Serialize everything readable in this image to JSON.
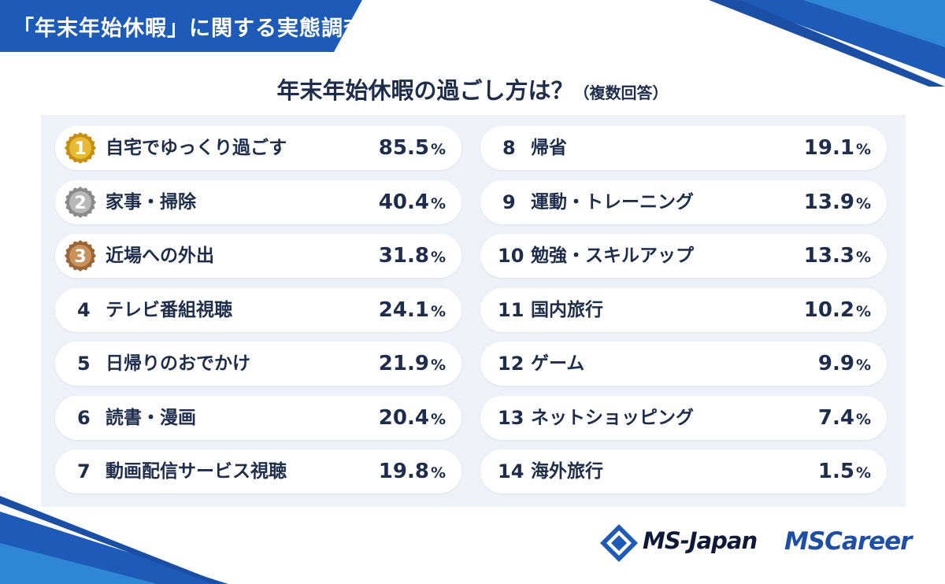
{
  "header": {
    "title": "「年末年始休暇」に関する実態調査"
  },
  "colors": {
    "accent": "#1e5bb8",
    "text": "#1f2d4d",
    "panel": "#eef2f8",
    "gold": "#d8a11f",
    "silver": "#9a9a9a",
    "bronze": "#b07a4a"
  },
  "chart_data": {
    "type": "table",
    "title": "年末年始休暇の過ごし方は？",
    "subtitle": "（複数回答）",
    "unit": "%",
    "rows": [
      {
        "rank": "1",
        "label": "自宅でゆっくり過ごす",
        "value": "85.5",
        "medal": "gold"
      },
      {
        "rank": "2",
        "label": "家事・掃除",
        "value": "40.4",
        "medal": "silver"
      },
      {
        "rank": "3",
        "label": "近場への外出",
        "value": "31.8",
        "medal": "bronze"
      },
      {
        "rank": "4",
        "label": "テレビ番組視聴",
        "value": "24.1"
      },
      {
        "rank": "5",
        "label": "日帰りのおでかけ",
        "value": "21.9"
      },
      {
        "rank": "6",
        "label": "読書・漫画",
        "value": "20.4"
      },
      {
        "rank": "7",
        "label": "動画配信サービス視聴",
        "value": "19.8"
      },
      {
        "rank": "8",
        "label": "帰省",
        "value": "19.1"
      },
      {
        "rank": "9",
        "label": "運動・トレーニング",
        "value": "13.9"
      },
      {
        "rank": "10",
        "label": "勉強・スキルアップ",
        "value": "13.3"
      },
      {
        "rank": "11",
        "label": "国内旅行",
        "value": "10.2"
      },
      {
        "rank": "12",
        "label": "ゲーム",
        "value": "9.9"
      },
      {
        "rank": "13",
        "label": "ネットショッピング",
        "value": "7.4"
      },
      {
        "rank": "14",
        "label": "海外旅行",
        "value": "1.5"
      }
    ]
  },
  "logos": {
    "msjapan": "MS-Japan",
    "mscareer": "MSCareer"
  }
}
